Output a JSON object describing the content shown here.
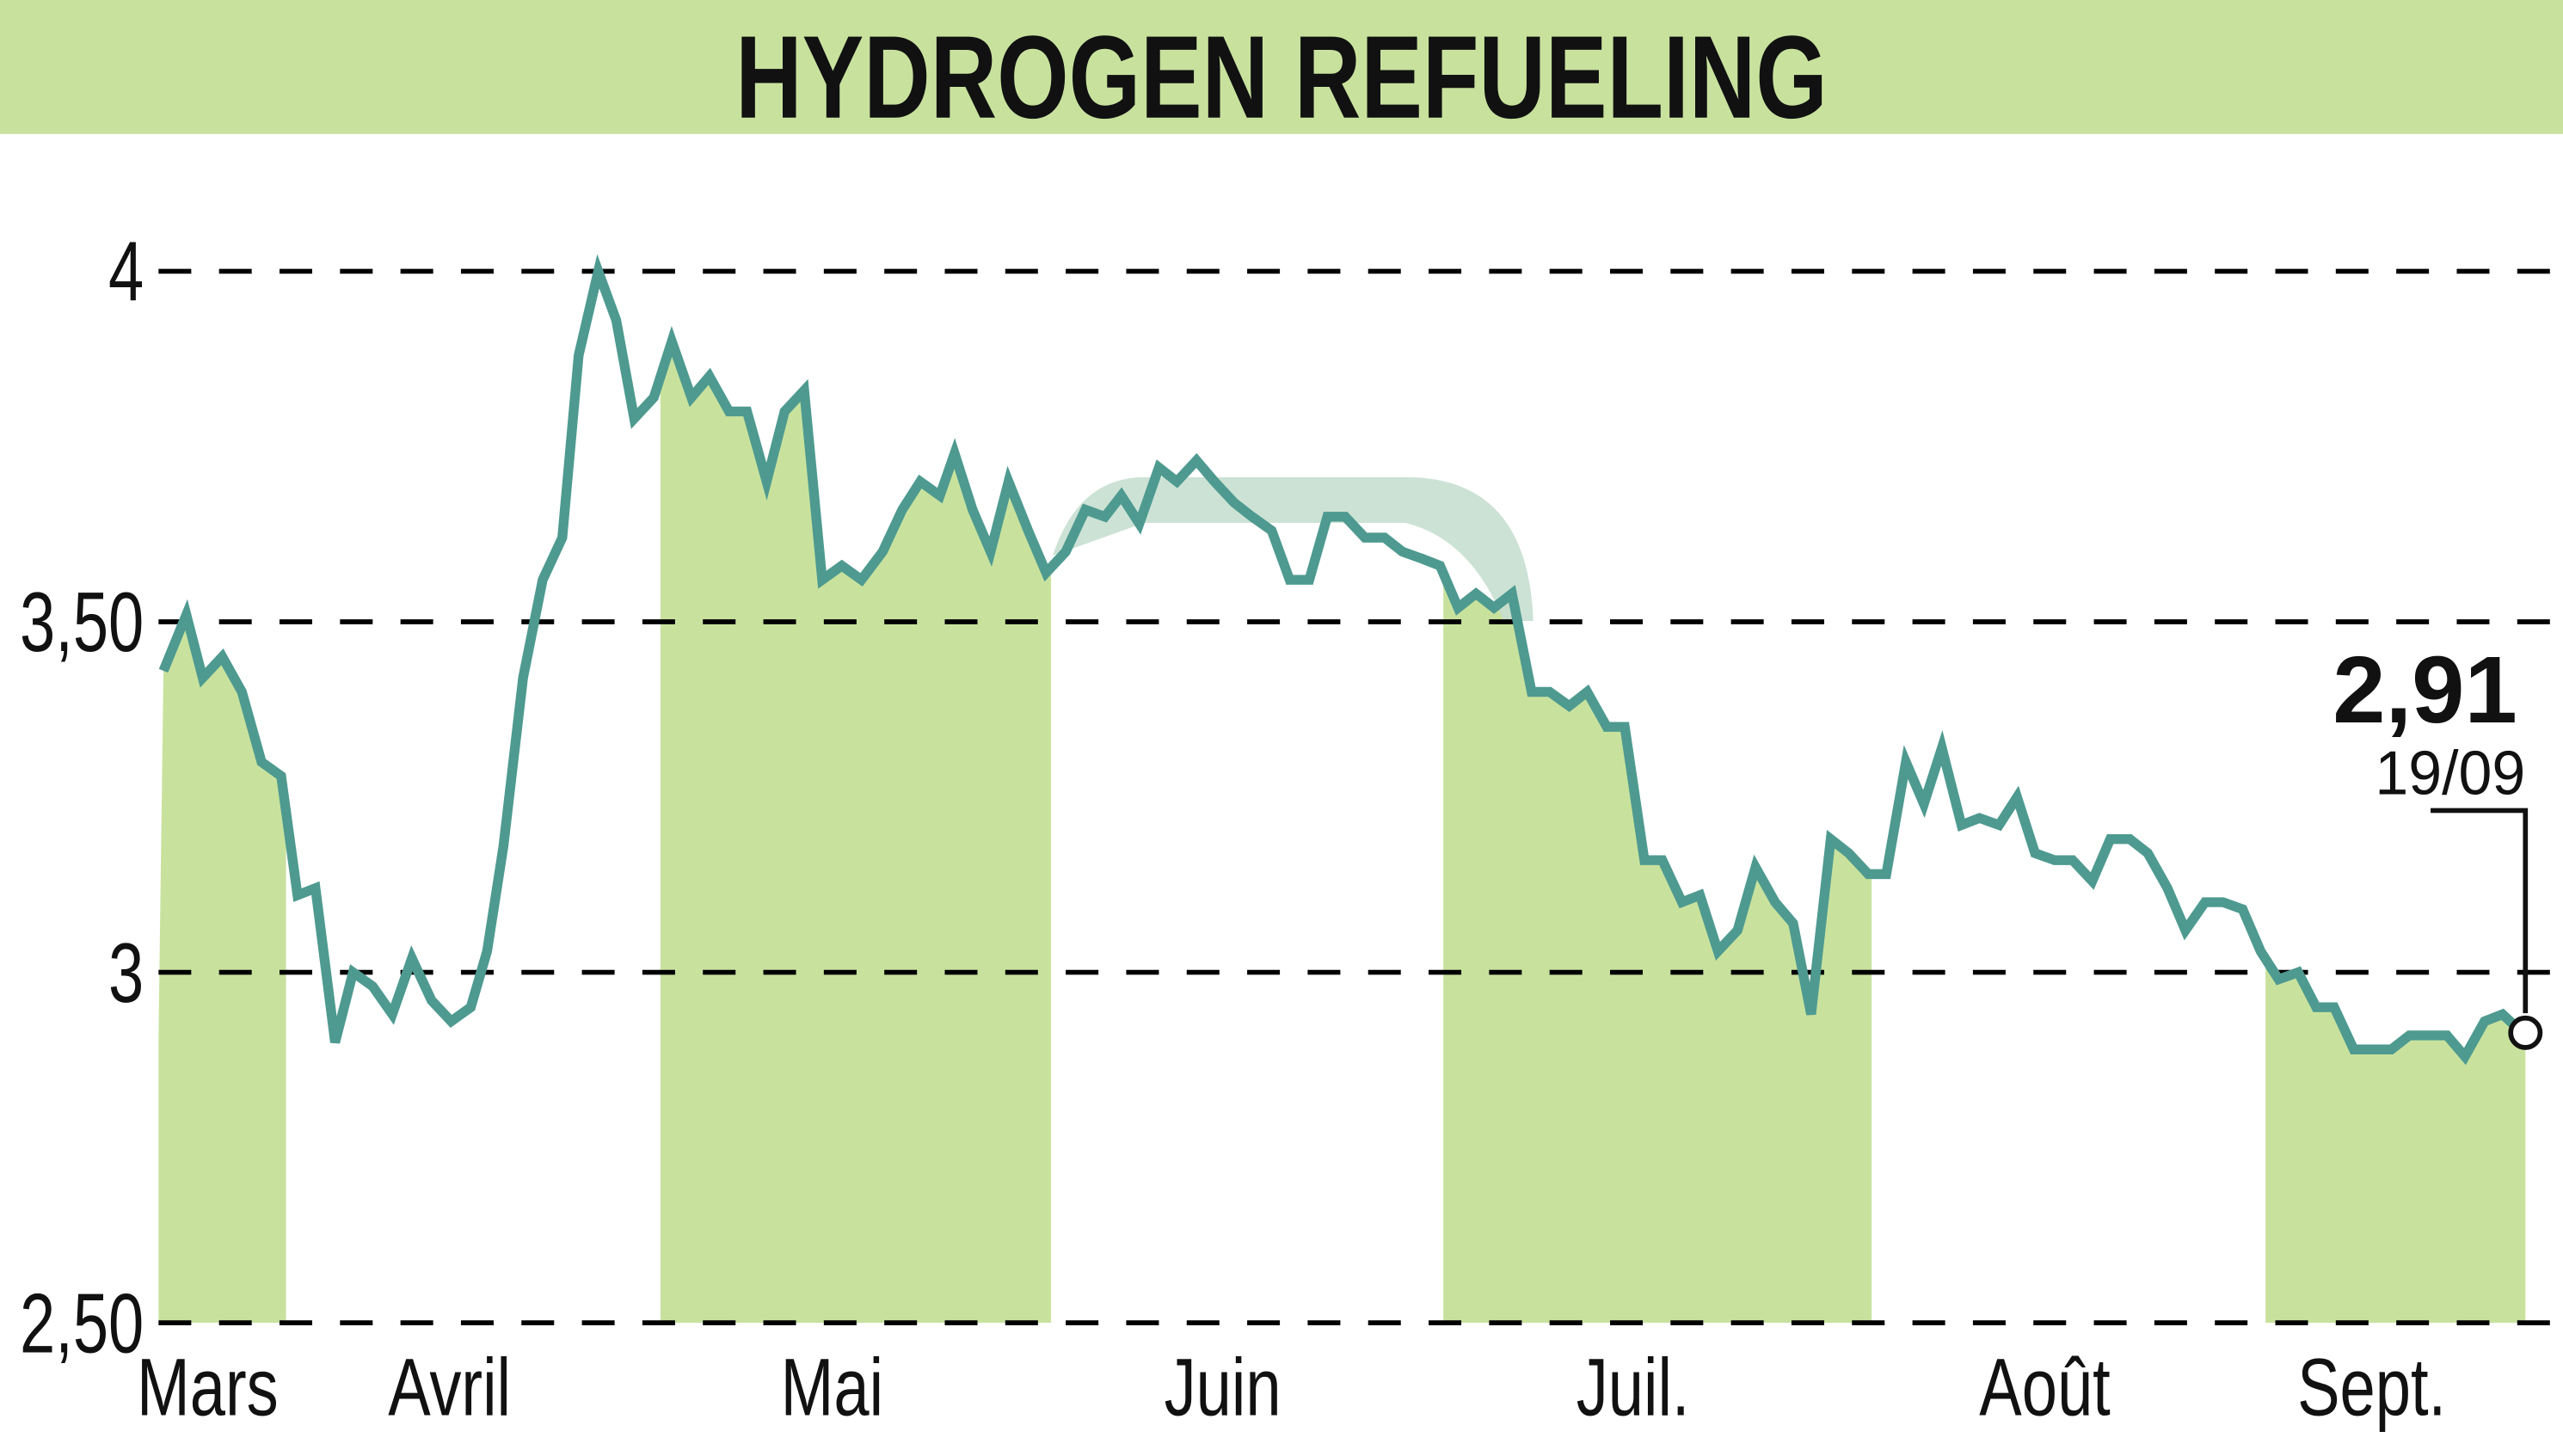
{
  "header": {
    "title": "HYDROGEN REFUELING",
    "background": "#c8e29e"
  },
  "colors": {
    "line": "#4e9a90",
    "month_band": "#c8e29e",
    "highlight_band": "#c6dfd0",
    "gridline": "#000000",
    "text": "#111111"
  },
  "last_value": {
    "value_label": "2,91",
    "date_label": "19/09"
  },
  "chart_data": {
    "type": "line",
    "title": "HYDROGEN REFUELING",
    "xlabel": "",
    "ylabel": "",
    "ylim": [
      2.5,
      4.0
    ],
    "yticks": [
      {
        "value": 4.0,
        "label": "4"
      },
      {
        "value": 3.5,
        "label": "3,50"
      },
      {
        "value": 3.0,
        "label": "3"
      },
      {
        "value": 2.5,
        "label": "2,50"
      }
    ],
    "grid": "horizontal dashed",
    "legend": "none",
    "months": [
      {
        "label": "Mars",
        "x0": 97,
        "x1": 175,
        "shaded": true,
        "label_x": 127
      },
      {
        "label": "Avril",
        "x0": 175,
        "x1": 404,
        "shaded": false,
        "label_x": 275
      },
      {
        "label": "Mai",
        "x0": 404,
        "x1": 643,
        "shaded": true,
        "label_x": 509
      },
      {
        "label": "Juin",
        "x0": 643,
        "x1": 883,
        "shaded": false,
        "label_x": 748
      },
      {
        "label": "Juil.",
        "x0": 883,
        "x1": 1145,
        "shaded": true,
        "label_x": 999
      },
      {
        "label": "Août",
        "x0": 1145,
        "x1": 1386,
        "shaded": false,
        "label_x": 1251
      },
      {
        "label": "Sept.",
        "x0": 1386,
        "x1": 1545,
        "shaded": true,
        "label_x": 1451
      }
    ],
    "annotation": {
      "value": 2.91,
      "label": "2,91",
      "date": "19/09"
    },
    "series": [
      {
        "name": "Hydrogen Refueling",
        "points": [
          [
            100,
            3.43
          ],
          [
            114,
            3.51
          ],
          [
            124,
            3.42
          ],
          [
            136,
            3.45
          ],
          [
            148,
            3.4
          ],
          [
            160,
            3.3
          ],
          [
            172,
            3.28
          ],
          [
            182,
            3.11
          ],
          [
            193,
            3.12
          ],
          [
            205,
            2.9
          ],
          [
            216,
            3.0
          ],
          [
            228,
            2.98
          ],
          [
            240,
            2.94
          ],
          [
            252,
            3.02
          ],
          [
            264,
            2.96
          ],
          [
            276,
            2.93
          ],
          [
            288,
            2.95
          ],
          [
            298,
            3.03
          ],
          [
            308,
            3.18
          ],
          [
            320,
            3.42
          ],
          [
            332,
            3.56
          ],
          [
            344,
            3.62
          ],
          [
            354,
            3.88
          ],
          [
            366,
            4.0
          ],
          [
            377,
            3.93
          ],
          [
            388,
            3.79
          ],
          [
            400,
            3.82
          ],
          [
            411,
            3.9
          ],
          [
            423,
            3.82
          ],
          [
            434,
            3.85
          ],
          [
            446,
            3.8
          ],
          [
            457,
            3.8
          ],
          [
            469,
            3.7
          ],
          [
            480,
            3.8
          ],
          [
            492,
            3.83
          ],
          [
            503,
            3.56
          ],
          [
            515,
            3.58
          ],
          [
            527,
            3.56
          ],
          [
            540,
            3.6
          ],
          [
            552,
            3.66
          ],
          [
            563,
            3.7
          ],
          [
            575,
            3.68
          ],
          [
            584,
            3.74
          ],
          [
            595,
            3.66
          ],
          [
            606,
            3.6
          ],
          [
            617,
            3.7
          ],
          [
            629,
            3.63
          ],
          [
            640,
            3.57
          ],
          [
            652,
            3.6
          ],
          [
            664,
            3.66
          ],
          [
            676,
            3.65
          ],
          [
            686,
            3.68
          ],
          [
            697,
            3.64
          ],
          [
            709,
            3.72
          ],
          [
            720,
            3.7
          ],
          [
            732,
            3.73
          ],
          [
            743,
            3.7
          ],
          [
            755,
            3.67
          ],
          [
            766,
            3.65
          ],
          [
            778,
            3.63
          ],
          [
            789,
            3.56
          ],
          [
            801,
            3.56
          ],
          [
            812,
            3.65
          ],
          [
            823,
            3.65
          ],
          [
            835,
            3.62
          ],
          [
            847,
            3.62
          ],
          [
            858,
            3.6
          ],
          [
            870,
            3.59
          ],
          [
            881,
            3.58
          ],
          [
            892,
            3.52
          ],
          [
            903,
            3.54
          ],
          [
            914,
            3.52
          ],
          [
            925,
            3.54
          ],
          [
            937,
            3.4
          ],
          [
            948,
            3.4
          ],
          [
            960,
            3.38
          ],
          [
            971,
            3.4
          ],
          [
            983,
            3.35
          ],
          [
            994,
            3.35
          ],
          [
            1006,
            3.16
          ],
          [
            1017,
            3.16
          ],
          [
            1029,
            3.1
          ],
          [
            1040,
            3.11
          ],
          [
            1051,
            3.03
          ],
          [
            1063,
            3.06
          ],
          [
            1074,
            3.15
          ],
          [
            1086,
            3.1
          ],
          [
            1097,
            3.07
          ],
          [
            1108,
            2.94
          ],
          [
            1120,
            3.19
          ],
          [
            1131,
            3.17
          ],
          [
            1143,
            3.14
          ],
          [
            1154,
            3.14
          ],
          [
            1166,
            3.3
          ],
          [
            1177,
            3.24
          ],
          [
            1188,
            3.32
          ],
          [
            1200,
            3.21
          ],
          [
            1211,
            3.22
          ],
          [
            1223,
            3.21
          ],
          [
            1234,
            3.25
          ],
          [
            1245,
            3.17
          ],
          [
            1257,
            3.16
          ],
          [
            1268,
            3.16
          ],
          [
            1280,
            3.13
          ],
          [
            1291,
            3.19
          ],
          [
            1303,
            3.19
          ],
          [
            1314,
            3.17
          ],
          [
            1326,
            3.12
          ],
          [
            1337,
            3.06
          ],
          [
            1349,
            3.1
          ],
          [
            1360,
            3.1
          ],
          [
            1372,
            3.09
          ],
          [
            1383,
            3.03
          ],
          [
            1394,
            2.99
          ],
          [
            1406,
            3.0
          ],
          [
            1417,
            2.95
          ],
          [
            1428,
            2.95
          ],
          [
            1440,
            2.89
          ],
          [
            1451,
            2.89
          ],
          [
            1463,
            2.89
          ],
          [
            1474,
            2.91
          ],
          [
            1486,
            2.91
          ],
          [
            1497,
            2.91
          ],
          [
            1508,
            2.88
          ],
          [
            1520,
            2.93
          ],
          [
            1531,
            2.94
          ],
          [
            1545,
            2.91
          ]
        ]
      }
    ]
  }
}
